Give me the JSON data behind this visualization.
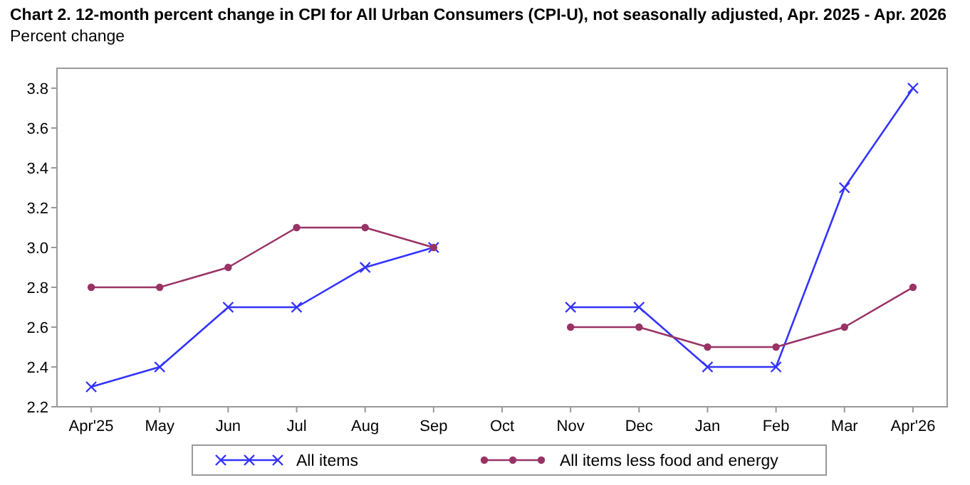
{
  "chart_data": {
    "type": "line",
    "title": "Chart 2. 12-month percent change in CPI for All Urban Consumers (CPI-U), not seasonally adjusted, Apr. 2025 - Apr. 2026",
    "ylabel": "Percent change",
    "categories": [
      "Apr'25",
      "May",
      "Jun",
      "Jul",
      "Aug",
      "Sep",
      "Oct",
      "Nov",
      "Dec",
      "Jan",
      "Feb",
      "Mar",
      "Apr'26"
    ],
    "series": [
      {
        "name": "All items",
        "color": "#3333ff",
        "marker": "cross",
        "values": [
          2.3,
          2.4,
          2.7,
          2.7,
          2.9,
          3.0,
          null,
          2.7,
          2.7,
          2.4,
          2.4,
          3.3,
          3.8
        ]
      },
      {
        "name": "All items less food and energy",
        "color": "#993366",
        "marker": "circle",
        "values": [
          2.8,
          2.8,
          2.9,
          3.1,
          3.1,
          3.0,
          null,
          2.6,
          2.6,
          2.5,
          2.5,
          2.6,
          2.8
        ]
      }
    ],
    "ylim": [
      2.2,
      3.9
    ],
    "yticks": [
      2.2,
      2.4,
      2.6,
      2.8,
      {
        "value": 3,
        "label": "3.0"
      },
      3.2,
      3.4,
      3.6,
      3.8
    ],
    "grid": false,
    "legend": "bottom",
    "line_style": "solid"
  }
}
